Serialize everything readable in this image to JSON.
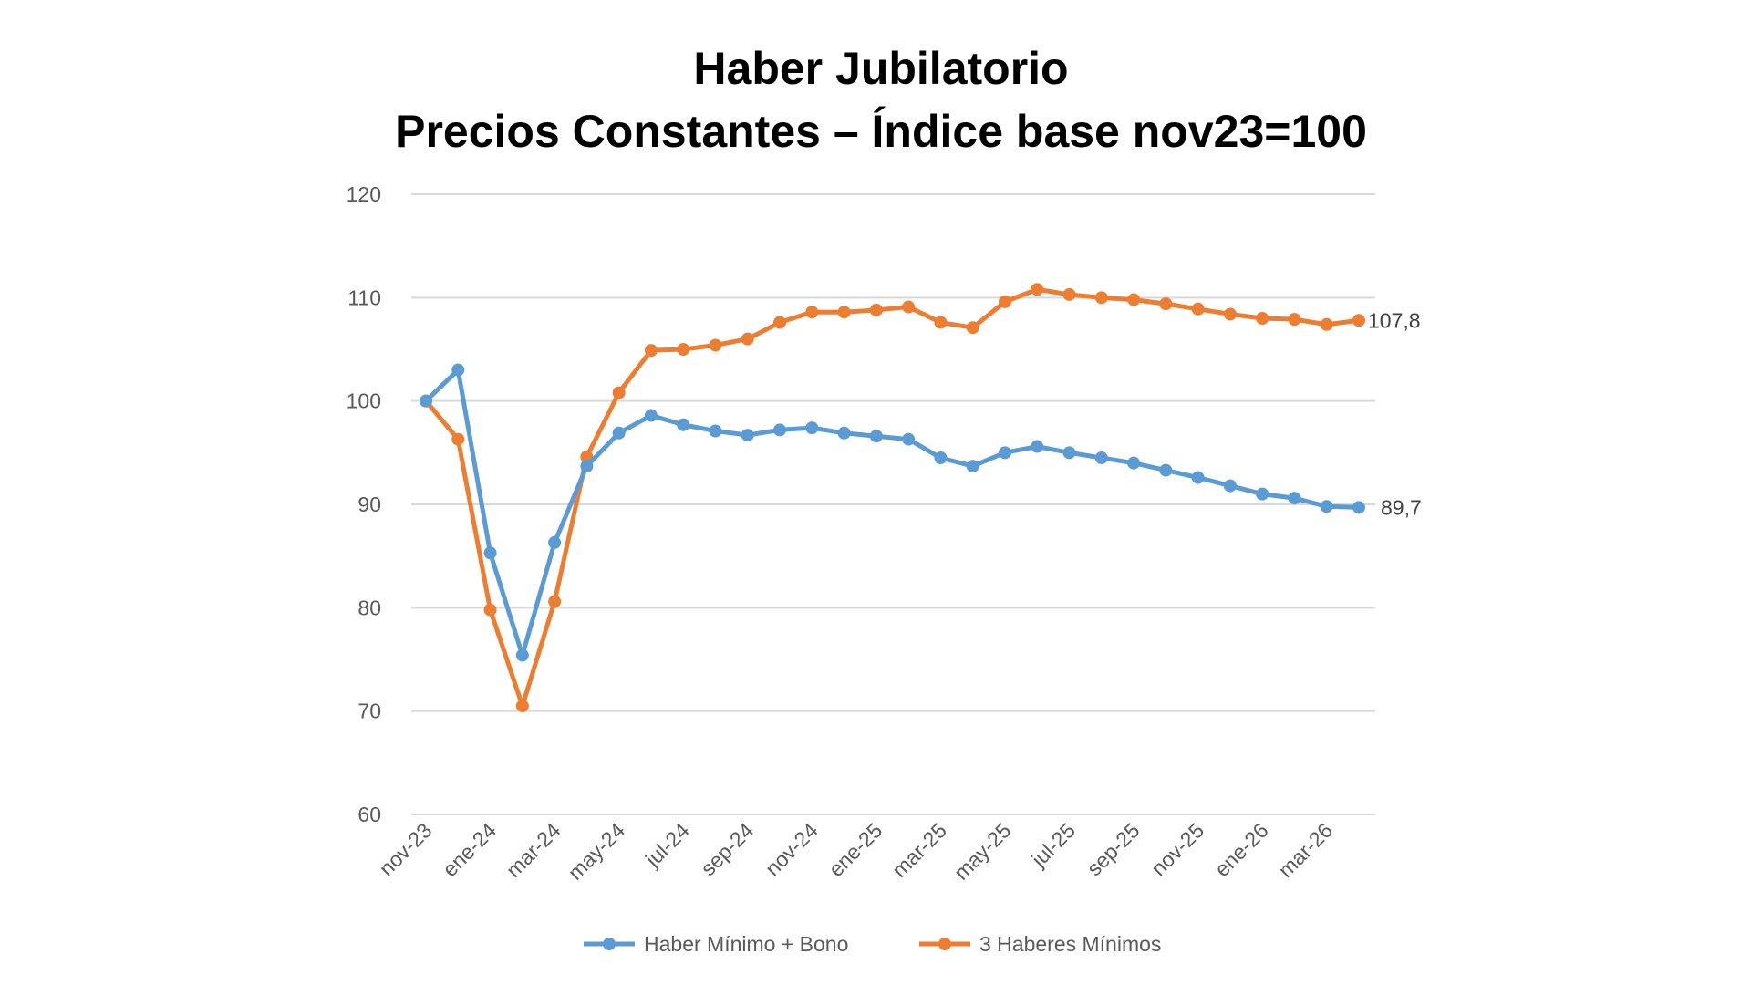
{
  "chart_data": {
    "type": "line",
    "title": "Haber Jubilatorio",
    "subtitle": "Precios Constantes – Índice base nov23=100",
    "xlabel": "",
    "ylabel": "",
    "ylim": [
      60,
      120
    ],
    "yticks": [
      60,
      70,
      80,
      90,
      100,
      110,
      120
    ],
    "grid": true,
    "legend_position": "bottom",
    "x": [
      "nov-23",
      "dic-23",
      "ene-24",
      "feb-24",
      "mar-24",
      "abr-24",
      "may-24",
      "jun-24",
      "jul-24",
      "ago-24",
      "sep-24",
      "oct-24",
      "nov-24",
      "dic-24",
      "ene-25",
      "feb-25",
      "mar-25",
      "abr-25",
      "may-25",
      "jun-25",
      "jul-25",
      "ago-25",
      "sep-25",
      "oct-25",
      "nov-25",
      "dic-25",
      "ene-26",
      "feb-26",
      "mar-26",
      "abr-26"
    ],
    "xtick_labels": [
      "nov-23",
      "ene-24",
      "mar-24",
      "may-24",
      "jul-24",
      "sep-24",
      "nov-24",
      "ene-25",
      "mar-25",
      "may-25",
      "jul-25",
      "sep-25",
      "nov-25",
      "ene-26",
      "mar-26"
    ],
    "series": [
      {
        "name": "Haber Mínimo + Bono",
        "color": "#5b9bd5",
        "values": [
          100,
          103,
          85.3,
          75.4,
          86.3,
          93.7,
          96.9,
          98.6,
          97.7,
          97.1,
          96.7,
          97.2,
          97.4,
          96.9,
          96.6,
          96.3,
          94.5,
          93.7,
          95.0,
          95.6,
          95.0,
          94.5,
          94.0,
          93.3,
          92.6,
          91.8,
          91.0,
          90.6,
          89.8,
          89.7
        ],
        "end_label": "89,7"
      },
      {
        "name": "3 Haberes Mínimos",
        "color": "#ed7d31",
        "values": [
          100,
          96.3,
          79.8,
          70.5,
          80.6,
          94.6,
          100.8,
          104.9,
          105.0,
          105.4,
          106.0,
          107.6,
          108.6,
          108.6,
          108.8,
          109.1,
          107.6,
          107.1,
          109.6,
          110.8,
          110.3,
          110.0,
          109.8,
          109.4,
          108.9,
          108.4,
          108.0,
          107.9,
          107.4,
          107.8
        ],
        "end_label": "107,8"
      }
    ]
  }
}
